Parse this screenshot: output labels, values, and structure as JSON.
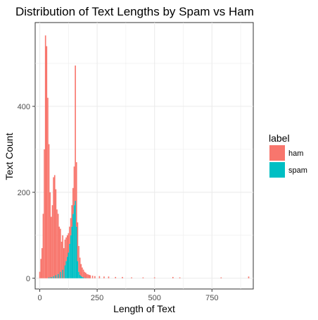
{
  "chart_data": {
    "type": "bar",
    "title": "Distribution of Text Lengths by Spam vs Ham",
    "xlabel": "Length of Text",
    "ylabel": "Text Count",
    "xlim": [
      -20,
      930
    ],
    "ylim": [
      -25,
      595
    ],
    "x_ticks": [
      0,
      250,
      500,
      750
    ],
    "y_ticks": [
      0,
      200,
      400
    ],
    "grid": true,
    "legend": {
      "title": "label",
      "position": "right"
    },
    "binwidth": 5,
    "series": [
      {
        "name": "ham",
        "color": "#F8766D",
        "x": [
          0,
          5,
          10,
          15,
          20,
          25,
          30,
          35,
          40,
          45,
          50,
          55,
          60,
          65,
          70,
          75,
          80,
          85,
          90,
          95,
          100,
          105,
          110,
          115,
          120,
          125,
          130,
          135,
          140,
          145,
          150,
          155,
          160,
          165,
          170,
          175,
          180,
          185,
          190,
          195,
          200,
          205,
          210,
          215,
          220,
          230,
          240,
          260,
          280,
          300,
          330,
          360,
          400,
          450,
          500,
          580,
          610,
          790,
          910
        ],
        "values": [
          15,
          45,
          70,
          150,
          300,
          565,
          540,
          420,
          310,
          200,
          140,
          170,
          230,
          240,
          200,
          160,
          140,
          120,
          100,
          85,
          80,
          70,
          60,
          55,
          50,
          45,
          40,
          40,
          50,
          60,
          90,
          315,
          150,
          90,
          60,
          40,
          28,
          22,
          18,
          15,
          12,
          10,
          9,
          8,
          7,
          6,
          5,
          5,
          4,
          4,
          3,
          3,
          2,
          2,
          2,
          3,
          2,
          2,
          4
        ]
      },
      {
        "name": "spam",
        "color": "#00BFC4",
        "x": [
          40,
          50,
          60,
          70,
          80,
          90,
          100,
          110,
          115,
          120,
          125,
          130,
          135,
          140,
          145,
          150,
          155,
          160,
          165,
          170,
          175,
          180,
          185,
          190,
          200
        ],
        "values": [
          2,
          3,
          5,
          7,
          10,
          15,
          20,
          30,
          40,
          50,
          60,
          80,
          100,
          120,
          150,
          170,
          180,
          120,
          40,
          15,
          8,
          5,
          3,
          2,
          1
        ]
      }
    ]
  }
}
